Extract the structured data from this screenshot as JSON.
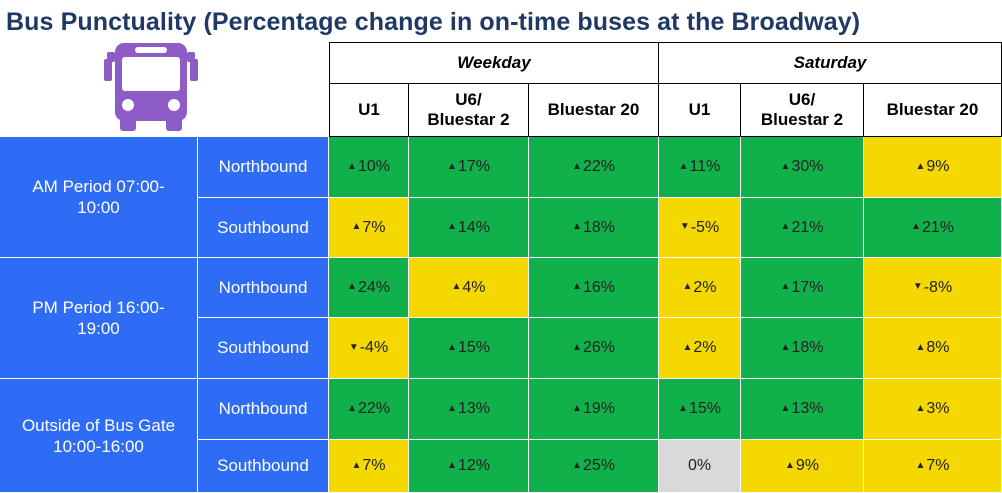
{
  "title": "Bus Punctuality (Percentage change in on-time buses at the Broadway)",
  "icon": "bus-icon",
  "colors": {
    "green": "#10b04a",
    "yellow": "#f5d800",
    "grey": "#d9d9d9",
    "blue": "#2f6cf5",
    "title": "#1f3864",
    "icon": "#8e5cc7"
  },
  "groups": [
    "Weekday",
    "Saturday"
  ],
  "routes": [
    "U1",
    "U6/\nBluestar 2",
    "Bluestar 20",
    "U1",
    "U6/\nBluestar 2",
    "Bluestar 20"
  ],
  "periods": [
    "AM Period 07:00-\n10:00",
    "PM Period 16:00-\n19:00",
    "Outside of Bus Gate\n10:00-16:00"
  ],
  "directions": [
    "Northbound",
    "Southbound"
  ],
  "chart_data": {
    "type": "table",
    "title": "Bus Punctuality (Percentage change in on-time buses at the Broadway)",
    "columns": [
      "Weekday U1",
      "Weekday U6/Bluestar 2",
      "Weekday Bluestar 20",
      "Saturday U1",
      "Saturday U6/Bluestar 2",
      "Saturday Bluestar 20"
    ],
    "rows": [
      {
        "period": "AM Period 07:00-10:00",
        "direction": "Northbound",
        "cells": [
          {
            "text": "10%",
            "arrow": "up",
            "color": "green"
          },
          {
            "text": "17%",
            "arrow": "up",
            "color": "green"
          },
          {
            "text": "22%",
            "arrow": "up",
            "color": "green"
          },
          {
            "text": "11%",
            "arrow": "up",
            "color": "green"
          },
          {
            "text": "30%",
            "arrow": "up",
            "color": "green"
          },
          {
            "text": "9%",
            "arrow": "up",
            "color": "yellow"
          }
        ]
      },
      {
        "period": "AM Period 07:00-10:00",
        "direction": "Southbound",
        "cells": [
          {
            "text": "7%",
            "arrow": "up",
            "color": "yellow"
          },
          {
            "text": "14%",
            "arrow": "up",
            "color": "green"
          },
          {
            "text": "18%",
            "arrow": "up",
            "color": "green"
          },
          {
            "text": "-5%",
            "arrow": "down",
            "color": "yellow"
          },
          {
            "text": "21%",
            "arrow": "up",
            "color": "green"
          },
          {
            "text": "21%",
            "arrow": "up",
            "color": "green"
          }
        ]
      },
      {
        "period": "PM Period 16:00-19:00",
        "direction": "Northbound",
        "cells": [
          {
            "text": "24%",
            "arrow": "up",
            "color": "green"
          },
          {
            "text": "4%",
            "arrow": "up",
            "color": "yellow"
          },
          {
            "text": "16%",
            "arrow": "up",
            "color": "green"
          },
          {
            "text": "2%",
            "arrow": "up",
            "color": "yellow"
          },
          {
            "text": "17%",
            "arrow": "up",
            "color": "green"
          },
          {
            "text": "-8%",
            "arrow": "down",
            "color": "yellow"
          }
        ]
      },
      {
        "period": "PM Period 16:00-19:00",
        "direction": "Southbound",
        "cells": [
          {
            "text": "-4%",
            "arrow": "down",
            "color": "yellow"
          },
          {
            "text": "15%",
            "arrow": "up",
            "color": "green"
          },
          {
            "text": "26%",
            "arrow": "up",
            "color": "green"
          },
          {
            "text": "2%",
            "arrow": "up",
            "color": "yellow"
          },
          {
            "text": "18%",
            "arrow": "up",
            "color": "green"
          },
          {
            "text": "8%",
            "arrow": "up",
            "color": "yellow"
          }
        ]
      },
      {
        "period": "Outside of Bus Gate 10:00-16:00",
        "direction": "Northbound",
        "cells": [
          {
            "text": "22%",
            "arrow": "up",
            "color": "green"
          },
          {
            "text": "13%",
            "arrow": "up",
            "color": "green"
          },
          {
            "text": "19%",
            "arrow": "up",
            "color": "green"
          },
          {
            "text": "15%",
            "arrow": "up",
            "color": "green"
          },
          {
            "text": "13%",
            "arrow": "up",
            "color": "green"
          },
          {
            "text": "3%",
            "arrow": "up",
            "color": "yellow"
          }
        ]
      },
      {
        "period": "Outside of Bus Gate 10:00-16:00",
        "direction": "Southbound",
        "cells": [
          {
            "text": "7%",
            "arrow": "up",
            "color": "yellow"
          },
          {
            "text": "12%",
            "arrow": "up",
            "color": "green"
          },
          {
            "text": "25%",
            "arrow": "up",
            "color": "green"
          },
          {
            "text": "0%",
            "arrow": "none",
            "color": "grey"
          },
          {
            "text": "9%",
            "arrow": "up",
            "color": "yellow"
          },
          {
            "text": "7%",
            "arrow": "up",
            "color": "yellow"
          }
        ]
      }
    ]
  }
}
